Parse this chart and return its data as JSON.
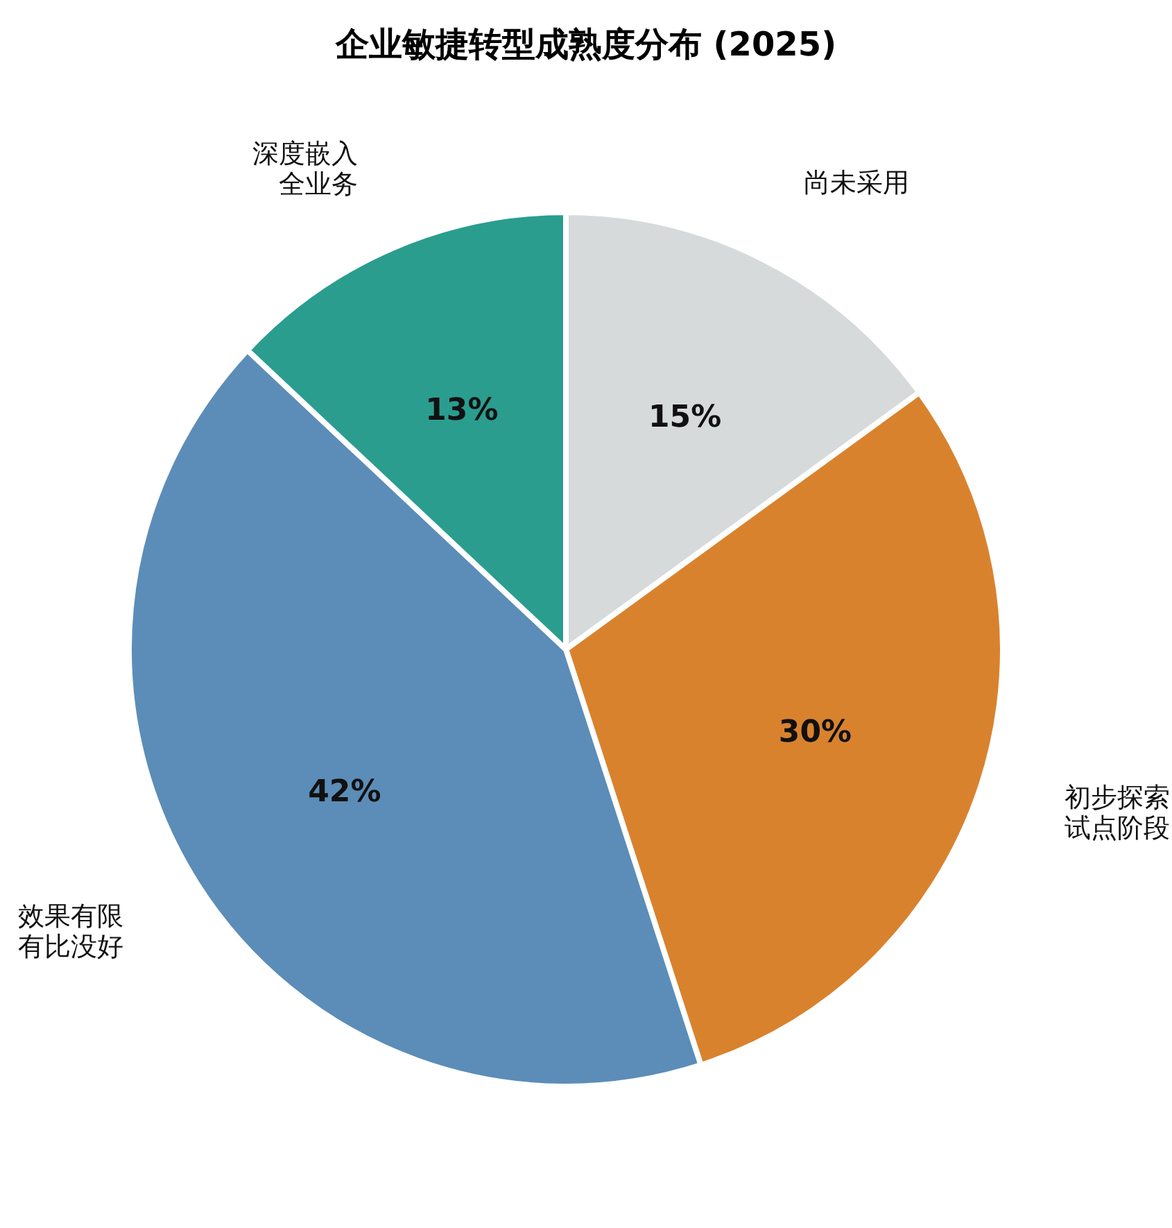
{
  "chart_data": {
    "type": "pie",
    "title": "企业敏捷转型成熟度分布 (2025)",
    "categories": [
      "尚未采用",
      "初步探索试点阶段",
      "效果有限有比没好",
      "深度嵌入全业务"
    ],
    "values": [
      15,
      30,
      42,
      13
    ],
    "value_labels": [
      "15%",
      "30%",
      "42%",
      "13%"
    ],
    "colors": [
      "#d7dadb",
      "#d9822e",
      "#5b8db8",
      "#2a9d8f"
    ],
    "legend": false
  }
}
